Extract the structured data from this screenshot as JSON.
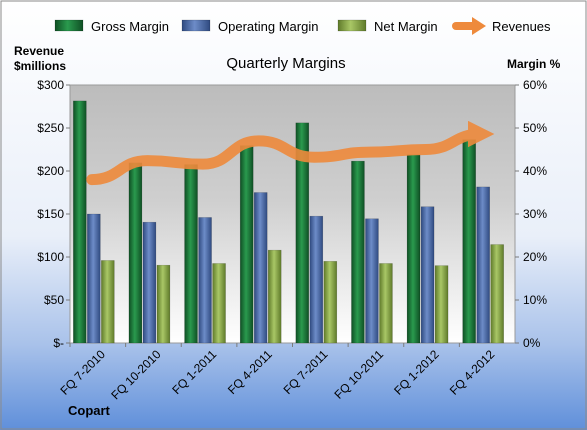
{
  "chart_data": {
    "type": "bar",
    "title": "Quarterly Margins",
    "footer_label": "Copart",
    "ylabel_left": [
      "Revenue",
      "$millions"
    ],
    "ylabel_right": "Margin %",
    "categories": [
      "FQ 7-2010",
      "FQ 10-2010",
      "FQ 1-2011",
      "FQ 4-2011",
      "FQ 7-2011",
      "FQ 10-2011",
      "FQ 1-2012",
      "FQ 4-2012"
    ],
    "left_axis": {
      "range": [
        0,
        300
      ],
      "ticks": [
        0,
        50,
        100,
        150,
        200,
        250,
        300
      ],
      "tick_labels": [
        "$-",
        "$50",
        "$100",
        "$150",
        "$200",
        "$250",
        "$300"
      ]
    },
    "right_axis": {
      "range": [
        0,
        60
      ],
      "ticks": [
        0,
        10,
        20,
        30,
        40,
        50,
        60
      ],
      "tick_labels": [
        "0%",
        "10%",
        "20%",
        "30%",
        "40%",
        "50%",
        "60%"
      ]
    },
    "series": [
      {
        "name": "Gross Margin",
        "axis": "right",
        "kind": "bar",
        "color": "#1E7B3C",
        "values": [
          56.3,
          41.9,
          41.5,
          45.9,
          51.2,
          42.3,
          43.8,
          47.3
        ]
      },
      {
        "name": "Operating Margin",
        "axis": "right",
        "kind": "bar",
        "color": "#4F6FAE",
        "values": [
          30.0,
          28.1,
          29.2,
          35.0,
          29.5,
          28.9,
          31.7,
          36.3
        ]
      },
      {
        "name": "Net Margin",
        "axis": "right",
        "kind": "bar",
        "color": "#8DAE4A",
        "values": [
          19.2,
          18.1,
          18.5,
          21.6,
          19.0,
          18.5,
          18.0,
          22.9
        ]
      },
      {
        "name": "Revenues",
        "axis": "left",
        "kind": "line",
        "color": "#EE8A3C",
        "values": [
          190,
          212,
          208,
          235,
          216,
          222,
          225,
          243
        ]
      }
    ],
    "legend_position": "top",
    "grid": false
  }
}
